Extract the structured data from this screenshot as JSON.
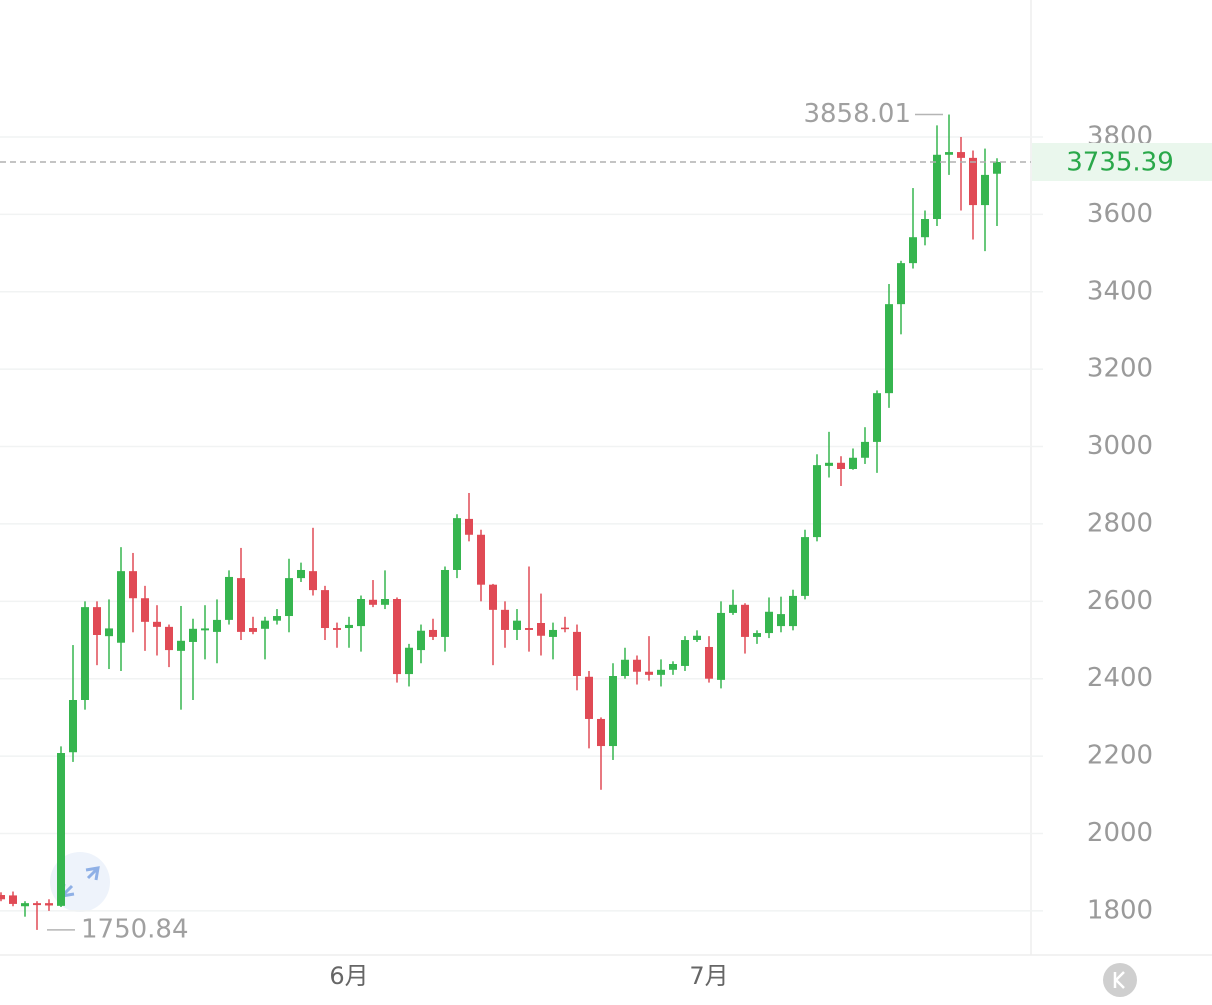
{
  "chart_data": {
    "type": "candlestick",
    "categories": [
      null,
      null,
      null,
      null,
      null,
      null,
      null,
      null,
      null,
      null,
      null,
      null,
      null,
      null,
      null,
      null,
      null,
      null,
      null,
      null,
      null,
      null,
      null,
      null,
      null,
      null,
      null,
      null,
      null,
      "6月",
      null,
      null,
      null,
      null,
      null,
      null,
      null,
      null,
      null,
      null,
      null,
      null,
      null,
      null,
      null,
      null,
      null,
      null,
      null,
      null,
      null,
      null,
      null,
      null,
      null,
      null,
      null,
      null,
      null,
      "7月",
      null,
      null,
      null,
      null,
      null,
      null,
      null,
      null,
      null,
      null,
      null,
      null,
      null,
      null,
      null,
      null,
      null,
      null,
      null,
      null,
      null,
      null,
      null,
      null
    ],
    "open": [
      1841,
      1840,
      1812,
      1820,
      1820,
      1813,
      2210,
      2345,
      2585,
      2510,
      2493,
      2678,
      2608,
      2547,
      2534,
      2472,
      2495,
      2525,
      2521,
      2552,
      2660,
      2531,
      2529,
      2550,
      2562,
      2660,
      2678,
      2629,
      2531,
      2531,
      2536,
      2604,
      2591,
      2606,
      2412,
      2474,
      2526,
      2508,
      2681,
      2813,
      2772,
      2643,
      2578,
      2526,
      2531,
      2544,
      2508,
      2532,
      2521,
      2405,
      2296,
      2226,
      2407,
      2449,
      2418,
      2410,
      2423,
      2433,
      2500,
      2482,
      2397,
      2570,
      2591,
      2508,
      2518,
      2536,
      2536,
      2614,
      2766,
      2950,
      2958,
      2942,
      2971,
      3012,
      3138,
      3368,
      3474,
      3541,
      3588,
      3754,
      3761,
      3746,
      3624,
      3705
    ],
    "high": [
      1848,
      1850,
      1825,
      1825,
      1830,
      2225,
      2487,
      2600,
      2600,
      2605,
      2740,
      2725,
      2640,
      2590,
      2540,
      2588,
      2555,
      2590,
      2605,
      2680,
      2738,
      2560,
      2560,
      2580,
      2710,
      2700,
      2790,
      2640,
      2545,
      2560,
      2615,
      2655,
      2680,
      2610,
      2490,
      2540,
      2555,
      2690,
      2825,
      2880,
      2785,
      2645,
      2600,
      2580,
      2690,
      2620,
      2545,
      2560,
      2540,
      2420,
      2300,
      2440,
      2480,
      2460,
      2510,
      2450,
      2445,
      2510,
      2525,
      2510,
      2600,
      2630,
      2595,
      2525,
      2610,
      2612,
      2630,
      2785,
      2980,
      3038,
      2975,
      2995,
      3050,
      3145,
      3420,
      3480,
      3668,
      3610,
      3830,
      3858.01,
      3800,
      3765,
      3770,
      3745
    ],
    "low": [
      1825,
      1812,
      1785,
      1750.84,
      1800,
      1810,
      2185,
      2320,
      2435,
      2425,
      2420,
      2520,
      2472,
      2460,
      2430,
      2320,
      2345,
      2450,
      2440,
      2540,
      2500,
      2515,
      2450,
      2540,
      2520,
      2650,
      2615,
      2500,
      2480,
      2480,
      2470,
      2585,
      2580,
      2390,
      2380,
      2440,
      2500,
      2470,
      2660,
      2755,
      2600,
      2435,
      2480,
      2500,
      2470,
      2460,
      2450,
      2520,
      2370,
      2220,
      2113,
      2190,
      2400,
      2385,
      2395,
      2380,
      2410,
      2420,
      2495,
      2390,
      2375,
      2565,
      2465,
      2490,
      2505,
      2520,
      2525,
      2605,
      2755,
      2920,
      2898,
      2940,
      2955,
      2932,
      3100,
      3290,
      3460,
      3520,
      3570,
      3702,
      3610,
      3535,
      3505,
      3570
    ],
    "close": [
      1830,
      1818,
      1820,
      1815,
      1814,
      2208,
      2345,
      2585,
      2513,
      2530,
      2678,
      2608,
      2547,
      2534,
      2474,
      2498,
      2529,
      2530,
      2552,
      2663,
      2521,
      2521,
      2550,
      2562,
      2660,
      2681,
      2629,
      2531,
      2526,
      2539,
      2606,
      2591,
      2606,
      2412,
      2480,
      2524,
      2508,
      2681,
      2815,
      2772,
      2643,
      2578,
      2526,
      2550,
      2526,
      2511,
      2526,
      2528,
      2407,
      2296,
      2226,
      2407,
      2449,
      2418,
      2410,
      2423,
      2438,
      2500,
      2511,
      2400,
      2570,
      2591,
      2508,
      2518,
      2573,
      2567,
      2614,
      2766,
      2952,
      2958,
      2942,
      2971,
      3012,
      3138,
      3368,
      3474,
      3541,
      3588,
      3754,
      3761,
      3746,
      3624,
      3702,
      3735.39
    ],
    "up_color": "#36b54f",
    "down_color": "#e04a55",
    "ylim": [
      1686,
      4154
    ],
    "yticks": [
      1800,
      2000,
      2200,
      2400,
      2600,
      2800,
      3000,
      3200,
      3400,
      3600,
      3800
    ],
    "grid": true
  }
}
